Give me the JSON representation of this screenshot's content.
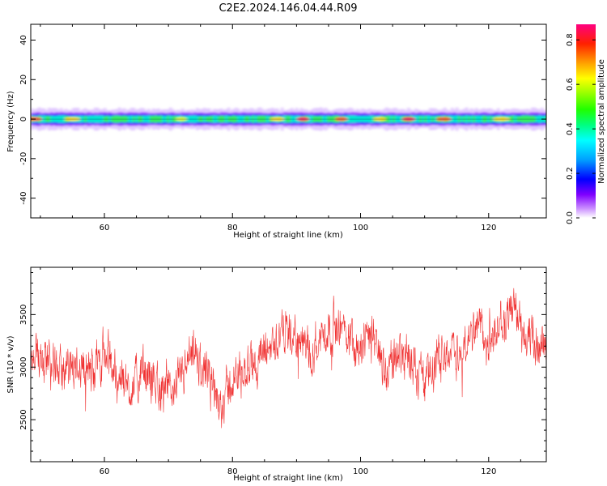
{
  "title": "C2E2.2024.146.04.44.R09",
  "charts": [
    {
      "type": "heatmap",
      "title": "",
      "xlabel": "Height of straight line (km)",
      "ylabel": "Frequency (Hz)",
      "xlim": [
        48.5,
        129
      ],
      "ylim": [
        -50,
        48
      ],
      "xticks": [
        60,
        80,
        100,
        120
      ],
      "yticks": [
        40,
        20,
        0,
        -20,
        -40
      ],
      "colorbar": {
        "label": "Normalized spectral amplitude",
        "range": [
          0,
          0.87
        ],
        "ticks": [
          0.0,
          0.2,
          0.4,
          0.6,
          0.8
        ],
        "tick_labels": [
          "0.0",
          "0.2",
          "0.4",
          "0.6",
          "0.8"
        ]
      },
      "band": {
        "center_hz": 0,
        "core_halfwidth_hz": 2,
        "outer_halfwidth_hz": 5,
        "peaks": [
          {
            "x": 49,
            "amplitude": 0.8
          },
          {
            "x": 55,
            "amplitude": 0.6
          },
          {
            "x": 72,
            "amplitude": 0.55
          },
          {
            "x": 87,
            "amplitude": 0.6
          },
          {
            "x": 91,
            "amplitude": 0.87
          },
          {
            "x": 97,
            "amplitude": 0.8
          },
          {
            "x": 103,
            "amplitude": 0.65
          },
          {
            "x": 107.5,
            "amplitude": 0.87
          },
          {
            "x": 113,
            "amplitude": 0.8
          },
          {
            "x": 122,
            "amplitude": 0.6
          }
        ]
      }
    },
    {
      "type": "line",
      "title": "",
      "xlabel": "Height of straight line (km)",
      "ylabel": "SNR (10 * v/v)",
      "xlim": [
        48.5,
        129
      ],
      "ylim": [
        2100,
        3950
      ],
      "xticks": [
        60,
        80,
        100,
        120
      ],
      "yticks": [
        2500,
        3000,
        3500
      ],
      "color": "#f03232",
      "series": [
        {
          "x": [
            48.5,
            50,
            52,
            54,
            56,
            58,
            60,
            62,
            64,
            66,
            68,
            70,
            72,
            74,
            76,
            78,
            80,
            82,
            84,
            86,
            88,
            90,
            92,
            94,
            96,
            98,
            100,
            102,
            104,
            106,
            108,
            110,
            112,
            114,
            116,
            118,
            120,
            122,
            124,
            126,
            128,
            129
          ],
          "y": [
            2950,
            3150,
            3050,
            2900,
            3050,
            2950,
            3150,
            2900,
            2800,
            2950,
            2850,
            2750,
            2900,
            3100,
            2900,
            2650,
            2850,
            3000,
            3050,
            3200,
            3350,
            3250,
            3150,
            3300,
            3400,
            3350,
            3200,
            3300,
            2950,
            3150,
            3100,
            2850,
            3050,
            3200,
            3100,
            3450,
            3200,
            3400,
            3550,
            3300,
            3100,
            3250
          ]
        }
      ],
      "noise_amplitude": 380
    }
  ]
}
